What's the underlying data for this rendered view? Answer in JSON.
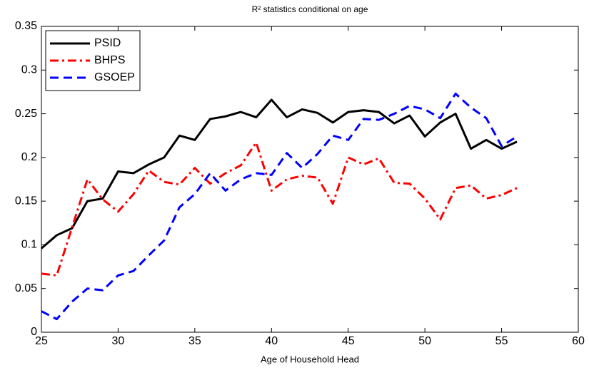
{
  "chart_data": {
    "type": "line",
    "title": "R² statistics conditional on age",
    "x_label": "Age of Household Head",
    "x": [
      25,
      26,
      27,
      28,
      29,
      30,
      31,
      32,
      33,
      34,
      35,
      36,
      37,
      38,
      39,
      40,
      41,
      42,
      43,
      44,
      45,
      46,
      47,
      48,
      49,
      50,
      51,
      52,
      53,
      54,
      55,
      56
    ],
    "series": [
      {
        "name": "PSID",
        "color": "#000000",
        "style": "solid",
        "values": [
          0.096,
          0.111,
          0.119,
          0.15,
          0.153,
          0.184,
          0.182,
          0.192,
          0.2,
          0.225,
          0.22,
          0.244,
          0.247,
          0.252,
          0.246,
          0.266,
          0.246,
          0.255,
          0.251,
          0.24,
          0.252,
          0.254,
          0.252,
          0.239,
          0.248,
          0.224,
          0.24,
          0.25,
          0.21,
          0.22,
          0.21,
          0.218
        ]
      },
      {
        "name": "BHPS",
        "color": "#ff0000",
        "style": "dashdot",
        "values": [
          0.067,
          0.065,
          0.12,
          0.175,
          0.152,
          0.138,
          0.158,
          0.185,
          0.172,
          0.169,
          0.188,
          0.17,
          0.182,
          0.191,
          0.217,
          0.162,
          0.175,
          0.179,
          0.177,
          0.147,
          0.2,
          0.192,
          0.199,
          0.171,
          0.17,
          0.153,
          0.129,
          0.165,
          0.168,
          0.153,
          0.157,
          0.165
        ]
      },
      {
        "name": "GSOEP",
        "color": "#0000ff",
        "style": "dashed",
        "values": [
          0.024,
          0.015,
          0.035,
          0.05,
          0.048,
          0.065,
          0.07,
          0.088,
          0.105,
          0.143,
          0.158,
          0.182,
          0.162,
          0.175,
          0.182,
          0.18,
          0.205,
          0.188,
          0.204,
          0.225,
          0.22,
          0.244,
          0.243,
          0.25,
          0.259,
          0.255,
          0.245,
          0.273,
          0.257,
          0.245,
          0.213,
          0.224
        ]
      }
    ],
    "xlim": [
      25,
      60
    ],
    "xticks": [
      25,
      30,
      35,
      40,
      45,
      50,
      55,
      60
    ],
    "ylim": [
      0,
      0.35
    ],
    "yticks": [
      0,
      0.05,
      0.1,
      0.15,
      0.2,
      0.25,
      0.3,
      0.35
    ],
    "grid": false,
    "legend": "upper left"
  }
}
